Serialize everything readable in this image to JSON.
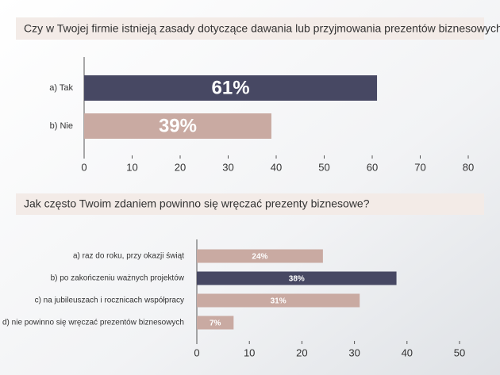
{
  "chart_data": [
    {
      "type": "bar",
      "orientation": "horizontal",
      "title": "Czy w Twojej firmie istnieją zasady dotyczące dawania lub przyjmowania prezentów biznesowych?",
      "categories": [
        "a) Tak",
        "b) Nie"
      ],
      "values": [
        61,
        39
      ],
      "value_labels": [
        "61%",
        "39%"
      ],
      "colors": [
        "#474863",
        "#c9aaa2"
      ],
      "xlim": [
        0,
        80
      ],
      "xticks": [
        0,
        10,
        20,
        30,
        40,
        50,
        60,
        70,
        80
      ]
    },
    {
      "type": "bar",
      "orientation": "horizontal",
      "title": "Jak często Twoim zdaniem powinno się wręczać prezenty biznesowe?",
      "categories": [
        "a) raz do roku, przy okazji świąt",
        "b) po zakończeniu ważnych projektów",
        "c) na jubileuszach i rocznicach współpracy",
        "d) nie powinno się wręczać prezentów biznesowych"
      ],
      "values": [
        24,
        38,
        31,
        7
      ],
      "value_labels": [
        "24%",
        "38%",
        "31%",
        "7%"
      ],
      "colors": [
        "#c9aaa2",
        "#474863",
        "#c9aaa2",
        "#c9aaa2"
      ],
      "xlim": [
        0,
        50
      ],
      "xticks": [
        0,
        10,
        20,
        30,
        40,
        50
      ]
    }
  ]
}
